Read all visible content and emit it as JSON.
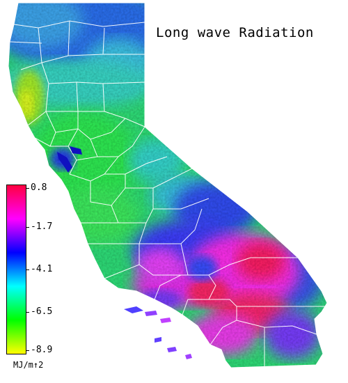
{
  "title": "Long wave Radiation",
  "legend": {
    "ticks": [
      "0.8",
      "-1.7",
      "-4.1",
      "-6.5",
      "-8.9"
    ],
    "unit": "MJ/m↑2",
    "colors": [
      "#ff0040",
      "#ff00ff",
      "#0000ff",
      "#00ffff",
      "#00ff00",
      "#ffff00"
    ]
  },
  "map_colors": {
    "cool_north": "#2a6cf0",
    "cyan": "#33ddd8",
    "green": "#33ee66",
    "yellow_green": "#ccff22",
    "blue_desert": "#3333ff",
    "magenta": "#ff33ff",
    "red": "#ff2266",
    "boundary": "#ffffff"
  }
}
